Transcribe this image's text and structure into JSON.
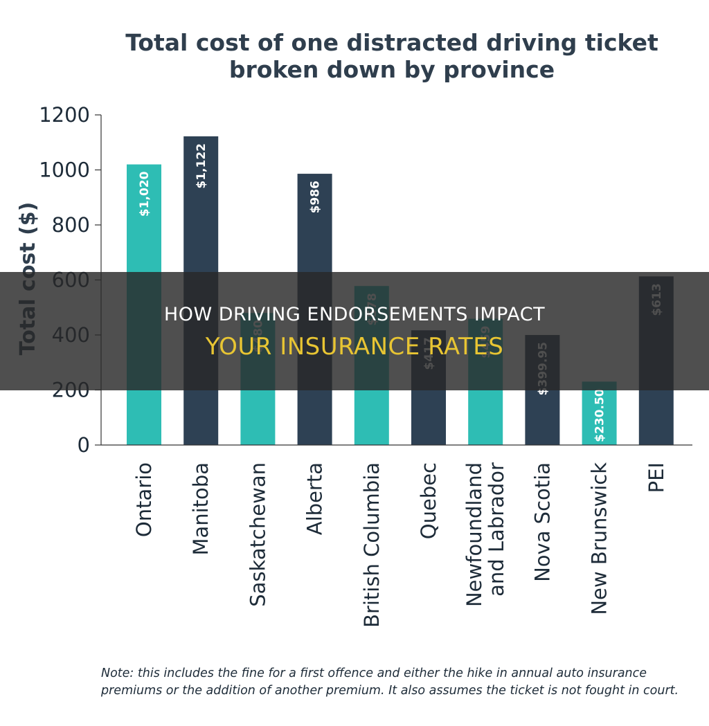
{
  "chart_data": {
    "type": "bar",
    "title": [
      "Total cost of one distracted driving ticket",
      "broken down by province"
    ],
    "ylabel": "Total cost ($)",
    "xlabel": "",
    "ylim": [
      0,
      1200
    ],
    "yticks": [
      "0",
      "200",
      "400",
      "600",
      "800",
      "1000",
      "1200"
    ],
    "grid": false,
    "categories": [
      [
        "Ontario"
      ],
      [
        "Manitoba"
      ],
      [
        "Saskatchewan"
      ],
      [
        "Alberta"
      ],
      [
        "British Columbia"
      ],
      [
        "Quebec"
      ],
      [
        "Newfoundland",
        "and Labrador"
      ],
      [
        "Nova Scotia"
      ],
      [
        "New Brunswick"
      ],
      [
        "PEI"
      ]
    ],
    "values": [
      1020,
      1122,
      480,
      986,
      578,
      417,
      459,
      399.95,
      230.5,
      613
    ],
    "value_labels": [
      "$1,020",
      "$1,122",
      "$480",
      "$986",
      "$578",
      "$417",
      "$459",
      "$399.95",
      "$230.50",
      "$613"
    ],
    "colors": [
      "#2ebdb4",
      "#2e4154",
      "#2ebdb4",
      "#2e4154",
      "#2ebdb4",
      "#2e4154",
      "#2ebdb4",
      "#2e4154",
      "#2ebdb4",
      "#2e4154"
    ],
    "note": [
      "Note: this includes the fine for a first offence and either the hike in annual auto insurance",
      "premiums or the addition of another premium. It also assumes the ticket is not fought in court."
    ]
  },
  "overlay": {
    "line1": "HOW DRIVING ENDORSEMENTS IMPACT",
    "line2": "YOUR INSURANCE RATES"
  }
}
